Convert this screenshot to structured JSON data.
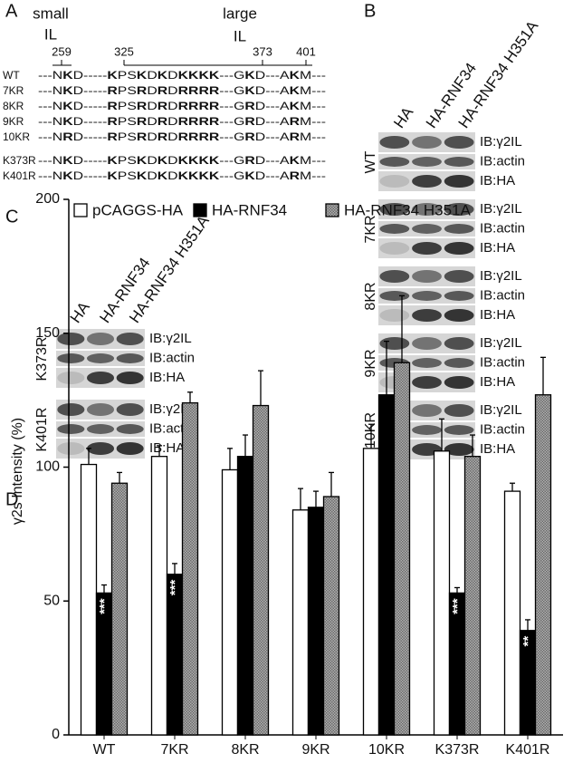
{
  "panel_a": {
    "label": "A",
    "small": "small",
    "small_il": "IL",
    "large": "large",
    "large_il": "IL",
    "positions": [
      259,
      325,
      373,
      401
    ],
    "rows": [
      {
        "name": "WT",
        "sequence": "---NKD-----KPSKDKDKKKK---GKD---AKM---"
      },
      {
        "name": "7KR",
        "sequence": "---NKD-----RPSRDRDRRRR---GKD---AKM---"
      },
      {
        "name": "8KR",
        "sequence": "---NKD-----RPSRDRDRRRR---GRD---AKM---"
      },
      {
        "name": "9KR",
        "sequence": "---NKD-----RPSRDRDRRRR---GRD---ARM---"
      },
      {
        "name": "10KR",
        "sequence": "---NRD-----RPSRDRDRRRR---GRD---ARM---"
      },
      {
        "name": "K373R",
        "sequence": "---NKD-----KPSKDKDKKKK---GRD---AKM---"
      },
      {
        "name": "K401R",
        "sequence": "---NKD-----KPSKDKDKKKK---GKD---ARM---"
      }
    ]
  },
  "panel_b": {
    "label": "B",
    "lanes": [
      "HA",
      "HA-RNF34",
      "HA-RNF34 H351A"
    ],
    "blots": [
      "IB:γ2IL",
      "IB:actin",
      "IB:HA"
    ],
    "groups": [
      "WT",
      "7KR",
      "8KR",
      "9KR",
      "10KR"
    ]
  },
  "panel_c": {
    "label": "C",
    "lanes": [
      "HA",
      "HA-RNF34",
      "HA-RNF34 H351A"
    ],
    "blots": [
      "IB:γ2IL",
      "IB:actin",
      "IB:HA"
    ],
    "groups": [
      "K373R",
      "K401R"
    ]
  },
  "chart_data": {
    "type": "bar",
    "label": "D",
    "y_label": "γ2s Intensity (%)",
    "categories": [
      "WT",
      "7KR",
      "8KR",
      "9KR",
      "10KR",
      "K373R",
      "K401R"
    ],
    "series": [
      {
        "name": "pCAGGS-HA",
        "color": "#ffffff",
        "values": [
          101,
          104,
          99,
          84,
          107,
          106,
          91
        ],
        "errors": [
          6,
          4,
          8,
          8,
          9,
          12,
          3
        ]
      },
      {
        "name": "HA-RNF34",
        "color": "#000000",
        "values": [
          53,
          60,
          104,
          85,
          127,
          53,
          39
        ],
        "errors": [
          3,
          4,
          8,
          6,
          20,
          2,
          4
        ],
        "significance": [
          "***",
          "***",
          null,
          null,
          null,
          "***",
          "**"
        ]
      },
      {
        "name": "HA-RNF34 H351A",
        "color": "#8c8c8c",
        "hatched": true,
        "values": [
          94,
          124,
          123,
          89,
          139,
          104,
          127
        ],
        "errors": [
          4,
          4,
          13,
          9,
          25,
          8,
          14
        ]
      }
    ],
    "ylim": [
      0,
      200
    ],
    "yticks": [
      0,
      50,
      100,
      150,
      200
    ]
  }
}
